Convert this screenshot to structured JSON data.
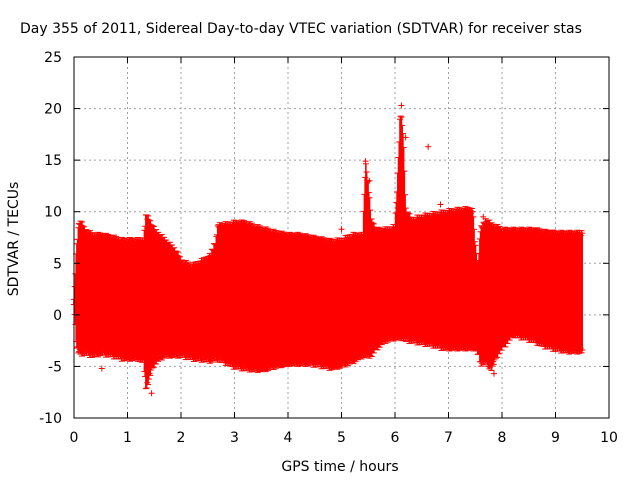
{
  "chart_data": {
    "type": "scatter",
    "title": "Day 355 of 2011, Sidereal Day-to-day VTEC variation (SDTVAR) for receiver stas",
    "xlabel": "GPS time / hours",
    "ylabel": "SDTVAR / TECUs",
    "xlim": [
      0,
      10
    ],
    "ylim": [
      -10,
      25
    ],
    "x_ticks": [
      0,
      1,
      2,
      3,
      4,
      5,
      6,
      7,
      8,
      9,
      10
    ],
    "y_ticks": [
      -10,
      -5,
      0,
      5,
      10,
      15,
      20,
      25
    ],
    "x_tick_labels": [
      "0",
      "1",
      "2",
      "3",
      "4",
      "5",
      "6",
      "7",
      "8",
      "9",
      "10"
    ],
    "y_tick_labels": [
      "-10",
      "-5",
      "0",
      "5",
      "10",
      "15",
      "20",
      "25"
    ],
    "grid": true,
    "marker": "+",
    "color": "#ff0000",
    "series": [
      {
        "name": "SDTVAR",
        "x": [
          0.0,
          0.05,
          0.1,
          0.15,
          0.2,
          0.35,
          0.5,
          0.7,
          0.9,
          1.0,
          1.2,
          1.3,
          1.35,
          1.4,
          1.45,
          1.5,
          1.6,
          1.7,
          1.8,
          1.9,
          2.0,
          2.2,
          2.4,
          2.55,
          2.65,
          2.7,
          2.8,
          3.0,
          3.2,
          3.4,
          3.6,
          3.8,
          4.0,
          4.2,
          4.4,
          4.6,
          4.8,
          5.0,
          5.2,
          5.4,
          5.45,
          5.5,
          5.55,
          5.65,
          5.8,
          6.0,
          6.05,
          6.1,
          6.15,
          6.2,
          6.3,
          6.5,
          6.7,
          6.9,
          7.1,
          7.3,
          7.45,
          7.5,
          7.55,
          7.6,
          7.7,
          7.8,
          7.9,
          8.0,
          8.2,
          8.4,
          8.6,
          8.8,
          9.0,
          9.2,
          9.4,
          9.5
        ],
        "upper": [
          1.5,
          7,
          9.5,
          9,
          8.5,
          8,
          8,
          7.8,
          7.5,
          7.5,
          7.5,
          7.6,
          10,
          9.5,
          9,
          8.5,
          8,
          7.5,
          7,
          6.5,
          5.5,
          5,
          5.5,
          6,
          7.5,
          9,
          9,
          9.2,
          9.2,
          8.8,
          8.5,
          8.2,
          8.0,
          8.0,
          7.8,
          7.6,
          7.4,
          7.5,
          8,
          8,
          15,
          13,
          9.5,
          8.5,
          8.5,
          8.8,
          13.5,
          20,
          18,
          10.5,
          9.5,
          9.8,
          10,
          10.2,
          10.4,
          10.5,
          10.5,
          7,
          5,
          8.5,
          9.5,
          9,
          8.8,
          8.5,
          8.5,
          8.5,
          8.5,
          8.3,
          8.2,
          8.2,
          8.2,
          8.3
        ],
        "lower": [
          1,
          -3.5,
          -4,
          -4,
          -4,
          -4.2,
          -4,
          -4.2,
          -4.5,
          -4.5,
          -4.5,
          -4.8,
          -7.5,
          -6.5,
          -5.5,
          -5,
          -4.5,
          -4.2,
          -4.2,
          -4.2,
          -4.2,
          -4.5,
          -4.6,
          -4.7,
          -4.5,
          -4.6,
          -4.8,
          -5.3,
          -5.5,
          -5.6,
          -5.5,
          -5.2,
          -5,
          -5,
          -5,
          -5.2,
          -5.4,
          -5.2,
          -4.8,
          -4.2,
          -4.2,
          -4.2,
          -4.2,
          -3.5,
          -2.8,
          -2.5,
          -2.5,
          -2.5,
          -2.5,
          -2.7,
          -2.8,
          -3.0,
          -3.2,
          -3.5,
          -3.5,
          -3.5,
          -3.5,
          -3.5,
          -4.0,
          -5.0,
          -4.8,
          -5.5,
          -4.2,
          -3.5,
          -2.2,
          -2.5,
          -2.8,
          -3.3,
          -3.6,
          -3.8,
          -3.8,
          -3.8
        ]
      }
    ],
    "outliers": [
      {
        "x": 5.45,
        "y": 14.9
      },
      {
        "x": 6.62,
        "y": 16.3
      },
      {
        "x": 6.85,
        "y": 10.7
      },
      {
        "x": 6.12,
        "y": 20.3
      },
      {
        "x": 5.52,
        "y": 13.0
      },
      {
        "x": 6.2,
        "y": 17.2
      },
      {
        "x": 5.0,
        "y": 8.3
      },
      {
        "x": 7.65,
        "y": 9.5
      },
      {
        "x": 7.85,
        "y": -5.7
      },
      {
        "x": 1.45,
        "y": -7.6
      },
      {
        "x": 7.75,
        "y": -5.0
      },
      {
        "x": 0.52,
        "y": -5.2
      }
    ]
  }
}
